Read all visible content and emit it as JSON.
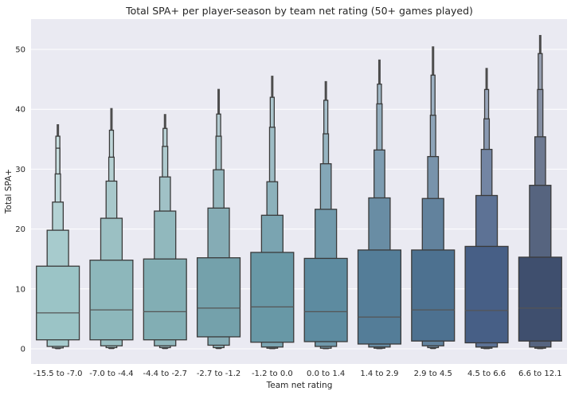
{
  "chart_data": {
    "type": "boxen",
    "title": "Total SPA+ per player-season by team net rating (50+ games played)",
    "xlabel": "Team net rating",
    "ylabel": "Total SPA+",
    "ylim": [
      -2.8,
      55
    ],
    "yticks": [
      0,
      10,
      20,
      30,
      40,
      50
    ],
    "grid": true,
    "categories": [
      "-15.5 to -7.0",
      "-7.0 to -4.4",
      "-4.4 to -2.7",
      "-2.7 to -1.2",
      "-1.2 to 0.0",
      "0.0 to 1.4",
      "1.4 to 2.9",
      "2.9 to 4.5",
      "4.5 to 6.6",
      "6.6 to 12.1"
    ],
    "colors": [
      "#9bc4c6",
      "#8db7bb",
      "#82aeb4",
      "#74a1ab",
      "#6898a6",
      "#5d8ba0",
      "#547d98",
      "#4d7190",
      "#475f86",
      "#3f4f6e"
    ],
    "boxes": [
      {
        "median": 6.0,
        "levels": [
          [
            1.5,
            13.8
          ],
          [
            0.4,
            19.8
          ],
          [
            0.15,
            24.5
          ],
          [
            0.1,
            29.2
          ],
          [
            0.05,
            33.5
          ],
          [
            0.05,
            35.5
          ]
        ],
        "max": 37.5
      },
      {
        "median": 6.5,
        "levels": [
          [
            1.5,
            14.8
          ],
          [
            0.5,
            21.8
          ],
          [
            0.2,
            28.0
          ],
          [
            0.1,
            32.0
          ],
          [
            0.05,
            36.5
          ]
        ],
        "max": 40.2
      },
      {
        "median": 6.2,
        "levels": [
          [
            1.5,
            15.0
          ],
          [
            0.5,
            23.0
          ],
          [
            0.2,
            28.7
          ],
          [
            0.1,
            33.8
          ],
          [
            0.05,
            36.8
          ]
        ],
        "max": 39.2
      },
      {
        "median": 6.8,
        "levels": [
          [
            2.0,
            15.2
          ],
          [
            0.6,
            23.5
          ],
          [
            0.2,
            29.9
          ],
          [
            0.1,
            35.5
          ],
          [
            0.05,
            39.2
          ]
        ],
        "max": 43.4
      },
      {
        "median": 7.0,
        "levels": [
          [
            1.1,
            16.1
          ],
          [
            0.3,
            22.3
          ],
          [
            0.1,
            27.9
          ],
          [
            0.05,
            37.0
          ],
          [
            0.05,
            42.0
          ]
        ],
        "max": 45.6
      },
      {
        "median": 6.2,
        "levels": [
          [
            1.2,
            15.1
          ],
          [
            0.4,
            23.3
          ],
          [
            0.1,
            30.9
          ],
          [
            0.05,
            35.9
          ],
          [
            0.05,
            41.5
          ]
        ],
        "max": 44.7
      },
      {
        "median": 5.3,
        "levels": [
          [
            0.8,
            16.5
          ],
          [
            0.3,
            25.2
          ],
          [
            0.1,
            33.2
          ],
          [
            0.05,
            40.9
          ],
          [
            0.05,
            44.2
          ]
        ],
        "max": 48.3
      },
      {
        "median": 6.5,
        "levels": [
          [
            1.3,
            16.5
          ],
          [
            0.5,
            25.1
          ],
          [
            0.2,
            32.1
          ],
          [
            0.1,
            39.0
          ],
          [
            0.05,
            45.7
          ]
        ],
        "max": 50.5
      },
      {
        "median": 6.4,
        "levels": [
          [
            1.0,
            17.1
          ],
          [
            0.3,
            25.6
          ],
          [
            0.1,
            33.3
          ],
          [
            0.05,
            38.4
          ],
          [
            0.05,
            43.3
          ]
        ],
        "max": 46.9
      },
      {
        "median": 6.8,
        "levels": [
          [
            1.3,
            15.3
          ],
          [
            0.3,
            27.3
          ],
          [
            0.1,
            35.4
          ],
          [
            0.05,
            43.3
          ],
          [
            0.05,
            49.3
          ]
        ],
        "max": 52.4
      }
    ]
  }
}
